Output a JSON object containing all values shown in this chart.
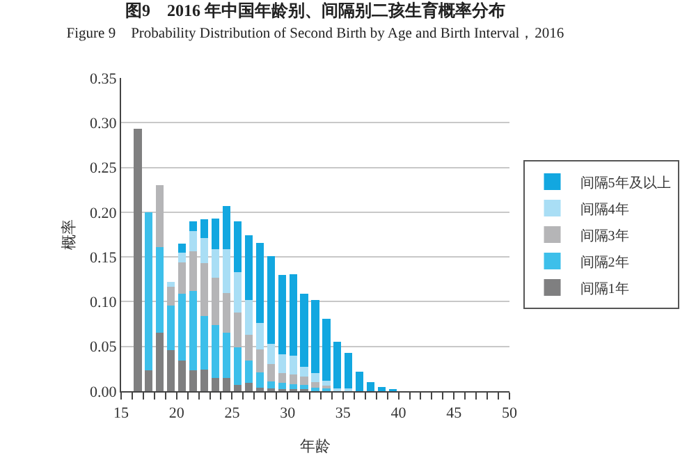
{
  "chart_data": {
    "type": "bar",
    "stacked": true,
    "title": "图9　2016 年中国年龄别、间隔别二孩生育概率分布",
    "subtitle": "Figure 9　Probability Distribution of Second Birth by Age and Birth Interval，2016",
    "xlabel": "年龄",
    "ylabel": "概率",
    "x": [
      16.5,
      17.5,
      18.5,
      19.5,
      20.5,
      21.5,
      22.5,
      23.5,
      24.5,
      25.5,
      26.5,
      27.5,
      28.5,
      29.5,
      30.5,
      31.5,
      32.5,
      33.5,
      34.5,
      35.5,
      36.5,
      37.5,
      38.5,
      39.5
    ],
    "series": [
      {
        "name": "间隔1年",
        "color": "#7f7f80",
        "values": [
          0.293,
          0.023,
          0.065,
          0.046,
          0.034,
          0.023,
          0.024,
          0.015,
          0.015,
          0.007,
          0.009,
          0.004,
          0.003,
          0.002,
          0.002,
          0.002,
          0,
          0,
          0,
          0,
          0,
          0,
          0,
          0
        ]
      },
      {
        "name": "间隔2年",
        "color": "#3dbfea",
        "values": [
          0,
          0.177,
          0.096,
          0.05,
          0.075,
          0.089,
          0.06,
          0.059,
          0.05,
          0.042,
          0.025,
          0.017,
          0.008,
          0.007,
          0.006,
          0.005,
          0.004,
          0.003,
          0,
          0,
          0,
          0,
          0,
          0
        ]
      },
      {
        "name": "间隔3年",
        "color": "#b5b5b7",
        "values": [
          0,
          0,
          0.069,
          0.021,
          0.035,
          0.044,
          0.059,
          0.053,
          0.045,
          0.039,
          0.029,
          0.026,
          0.019,
          0.011,
          0.011,
          0.009,
          0.006,
          0.003,
          0,
          0,
          0,
          0,
          0,
          0
        ]
      },
      {
        "name": "间隔4年",
        "color": "#a9def5",
        "values": [
          0,
          0,
          0,
          0.005,
          0.011,
          0.023,
          0.028,
          0.032,
          0.049,
          0.045,
          0.039,
          0.029,
          0.023,
          0.021,
          0.021,
          0.011,
          0.01,
          0.006,
          0.003,
          0.003,
          0,
          0,
          0,
          0
        ]
      },
      {
        "name": "间隔5年及以上",
        "color": "#12a7e0",
        "values": [
          0,
          0,
          0,
          0,
          0.01,
          0.011,
          0.021,
          0.034,
          0.048,
          0.057,
          0.072,
          0.09,
          0.098,
          0.089,
          0.091,
          0.082,
          0.082,
          0.069,
          0.052,
          0.04,
          0.022,
          0.01,
          0.005,
          0.002
        ]
      }
    ],
    "xlim": [
      15,
      50
    ],
    "xticks": [
      15,
      {
        "value": 16,
        "label": null
      },
      {
        "value": 17,
        "label": null
      },
      {
        "value": 18,
        "label": null
      },
      {
        "value": 19,
        "label": null
      },
      20,
      {
        "value": 21,
        "label": null
      },
      {
        "value": 22,
        "label": null
      },
      {
        "value": 23,
        "label": null
      },
      {
        "value": 24,
        "label": null
      },
      25,
      {
        "value": 26,
        "label": null
      },
      {
        "value": 27,
        "label": null
      },
      {
        "value": 28,
        "label": null
      },
      {
        "value": 29,
        "label": null
      },
      30,
      {
        "value": 31,
        "label": null
      },
      {
        "value": 32,
        "label": null
      },
      {
        "value": 33,
        "label": null
      },
      {
        "value": 34,
        "label": null
      },
      35,
      {
        "value": 36,
        "label": null
      },
      {
        "value": 37,
        "label": null
      },
      {
        "value": 38,
        "label": null
      },
      {
        "value": 39,
        "label": null
      },
      40,
      {
        "value": 41,
        "label": null
      },
      {
        "value": 42,
        "label": null
      },
      {
        "value": 43,
        "label": null
      },
      {
        "value": 44,
        "label": null
      },
      45,
      {
        "value": 46,
        "label": null
      },
      {
        "value": 47,
        "label": null
      },
      {
        "value": 48,
        "label": null
      },
      {
        "value": 49,
        "label": null
      },
      50
    ],
    "ylim": [
      0,
      0.35
    ],
    "yticks": [
      {
        "value": 0,
        "label": "0.00"
      },
      {
        "value": 0.05,
        "label": "0.05"
      },
      {
        "value": 0.1,
        "label": "0.10"
      },
      {
        "value": 0.15,
        "label": "0.15"
      },
      {
        "value": 0.2,
        "label": "0.20"
      },
      {
        "value": 0.25,
        "label": "0.25"
      },
      {
        "value": 0.3,
        "label": "0.30"
      },
      {
        "value": 0.35,
        "label": "0.35"
      }
    ],
    "grid": "y",
    "legend": "right"
  }
}
